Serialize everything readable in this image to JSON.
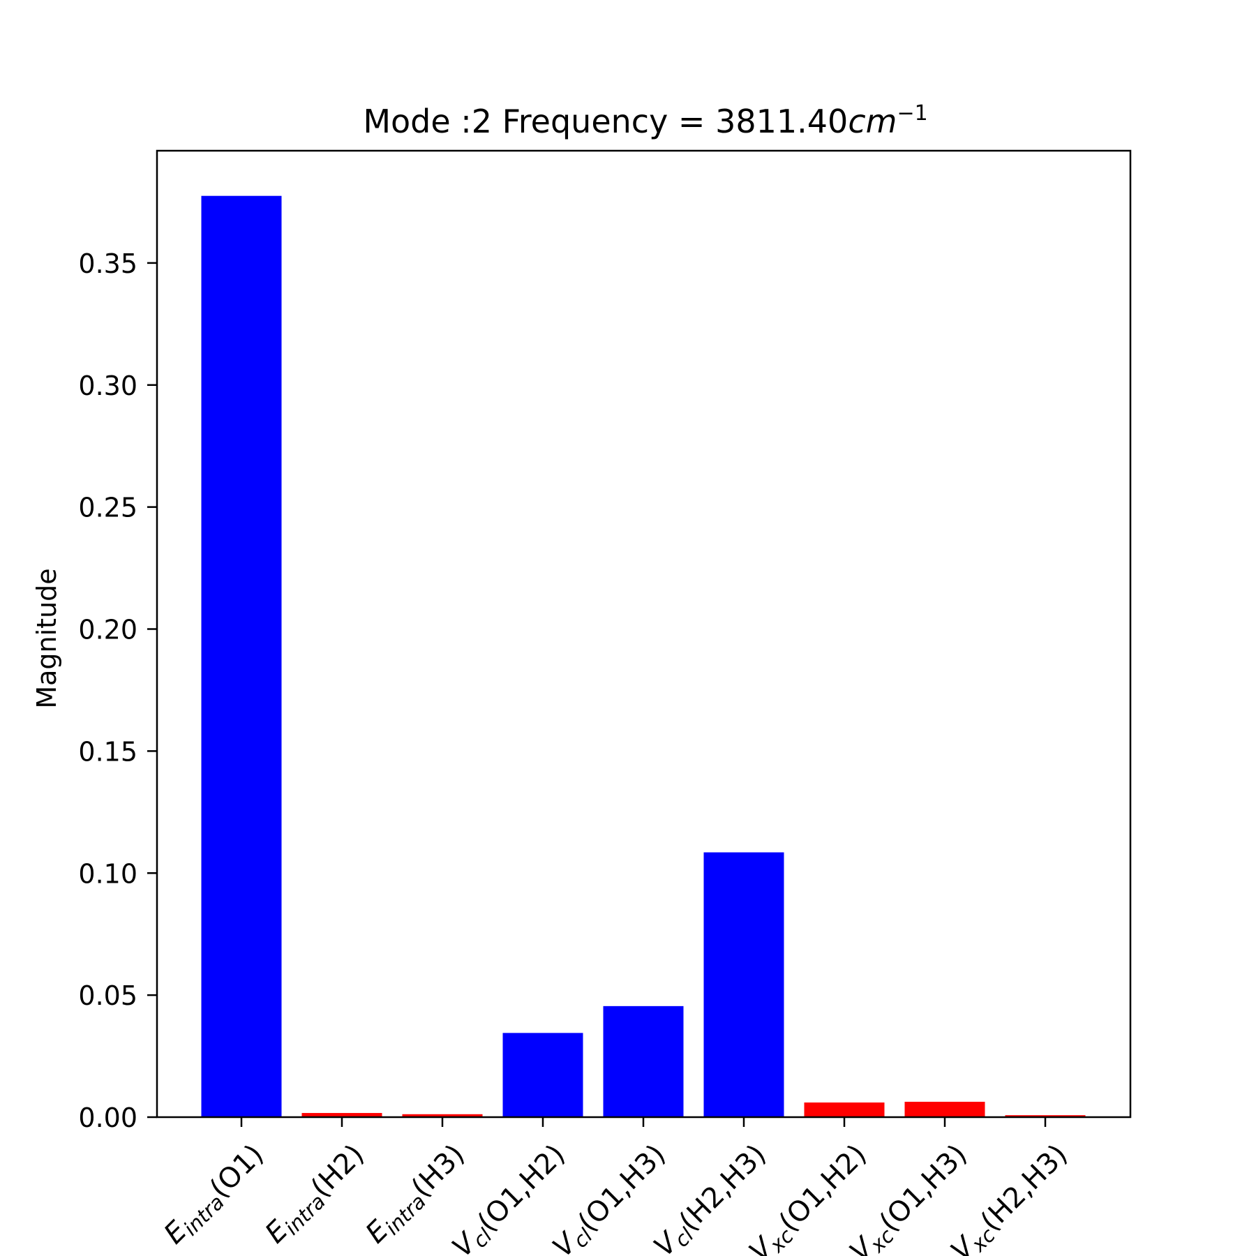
{
  "chart_data": {
    "type": "bar",
    "title": {
      "prefix": "Mode :2   Frequency = 3811.40",
      "unit_main": "cm",
      "unit_sup": "−1"
    },
    "ylabel": "Magnitude",
    "ylim": [
      0,
      0.396
    ],
    "yticks": [
      "0.00",
      "0.05",
      "0.10",
      "0.15",
      "0.20",
      "0.25",
      "0.30",
      "0.35"
    ],
    "ytick_values": [
      0,
      0.05,
      0.1,
      0.15,
      0.2,
      0.25,
      0.3,
      0.35
    ],
    "grid": false,
    "colors": {
      "positive": "#0000ff",
      "negative": "#ff0000"
    },
    "categories": [
      {
        "sym": "E",
        "sub": "intra",
        "args": "(O1)"
      },
      {
        "sym": "E",
        "sub": "intra",
        "args": "(H2)"
      },
      {
        "sym": "E",
        "sub": "intra",
        "args": "(H3)"
      },
      {
        "sym": "V",
        "sub": "cl",
        "args": "(O1,H2)"
      },
      {
        "sym": "V",
        "sub": "cl",
        "args": "(O1,H3)"
      },
      {
        "sym": "V",
        "sub": "cl",
        "args": "(H2,H3)"
      },
      {
        "sym": "V",
        "sub": "xc",
        "args": "(O1,H2)"
      },
      {
        "sym": "V",
        "sub": "xc",
        "args": "(O1,H3)"
      },
      {
        "sym": "V",
        "sub": "xc",
        "args": "(H2,H3)"
      }
    ],
    "values": [
      0.3775,
      0.0017,
      0.0012,
      0.0345,
      0.0455,
      0.1085,
      0.006,
      0.0063,
      0.0008
    ],
    "bar_colors": [
      "#0000ff",
      "#ff0000",
      "#ff0000",
      "#0000ff",
      "#0000ff",
      "#0000ff",
      "#ff0000",
      "#ff0000",
      "#ff0000"
    ]
  }
}
